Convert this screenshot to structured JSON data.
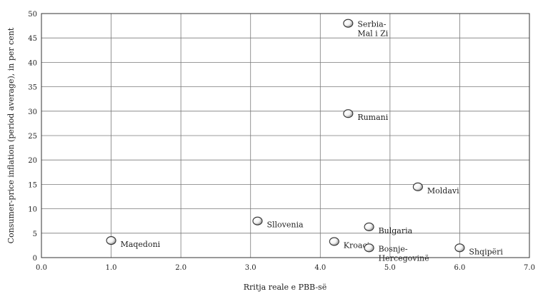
{
  "chart_data": {
    "type": "scatter",
    "xlabel": "Rritja reale e PBB-së",
    "ylabel": "Consumer-price inflation (period average), in per cent",
    "xlim": [
      0,
      7
    ],
    "ylim": [
      0,
      50
    ],
    "x_ticks": [
      "0.0",
      "1.0",
      "2.0",
      "3.0",
      "4.0",
      "5.0",
      "6.0",
      "7.0"
    ],
    "y_ticks": [
      "0",
      "5",
      "10",
      "15",
      "20",
      "25",
      "30",
      "35",
      "40",
      "45",
      "50"
    ],
    "grid": true,
    "legend": "none",
    "marker_color": "#ffffff",
    "points": [
      {
        "label": "Maqedoni",
        "x": 1.0,
        "y": 3.5
      },
      {
        "label": "Sllovenia",
        "x": 3.1,
        "y": 7.5
      },
      {
        "label": "Kroaci",
        "x": 4.2,
        "y": 3.3
      },
      {
        "label": "Serbia-\nMal i Zi",
        "x": 4.4,
        "y": 48.0
      },
      {
        "label": "Rumani",
        "x": 4.4,
        "y": 29.5
      },
      {
        "label": "Bosnje-\nHercegovinë",
        "x": 4.7,
        "y": 2.0
      },
      {
        "label": "Bulgaria",
        "x": 4.7,
        "y": 6.3
      },
      {
        "label": "Moldavi",
        "x": 5.4,
        "y": 14.5
      },
      {
        "label": "Shqipëri",
        "x": 6.0,
        "y": 2.0
      }
    ]
  }
}
